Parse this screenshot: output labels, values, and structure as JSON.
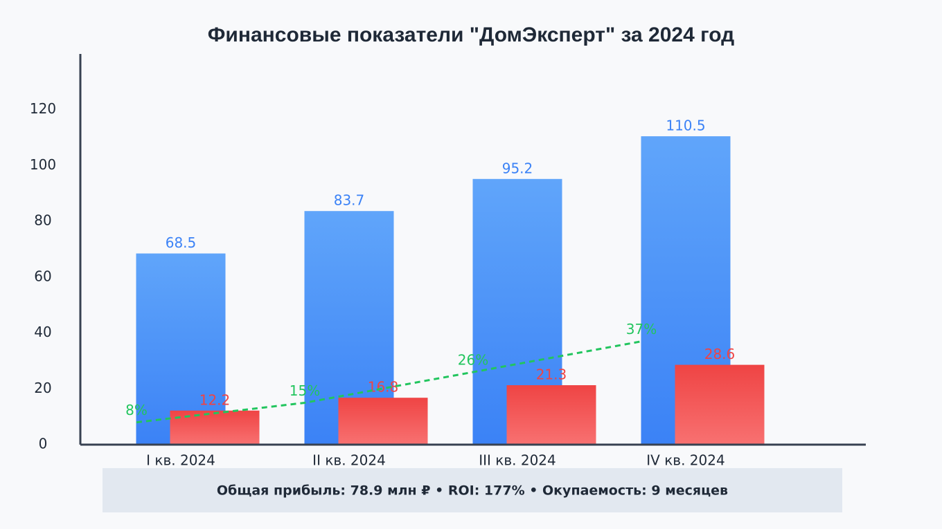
{
  "chart_data": {
    "type": "bar",
    "title": "Финансовые показатели \"ДомЭксперт\" за 2024 год",
    "categories": [
      "I кв. 2024",
      "II кв. 2024",
      "III кв. 2024",
      "IV кв. 2024"
    ],
    "series": [
      {
        "color": "#3b82f6",
        "values": [
          68.5,
          83.7,
          95.2,
          110.5
        ]
      },
      {
        "color": "#ef4444",
        "values": [
          12.2,
          16.8,
          21.3,
          28.6
        ]
      },
      {
        "type": "line",
        "color": "#22c55e",
        "values": [
          8,
          15,
          26,
          37
        ],
        "value_labels": [
          "8%",
          "15%",
          "26%",
          "37%"
        ]
      }
    ],
    "ylim": [
      0,
      140
    ],
    "yticks": [
      0,
      20,
      40,
      60,
      80,
      100,
      120
    ],
    "grid": false,
    "footer": "Общая прибыль: 78.9 млн ₽ • ROI: 177% • Окупаемость: 9 месяцев"
  }
}
